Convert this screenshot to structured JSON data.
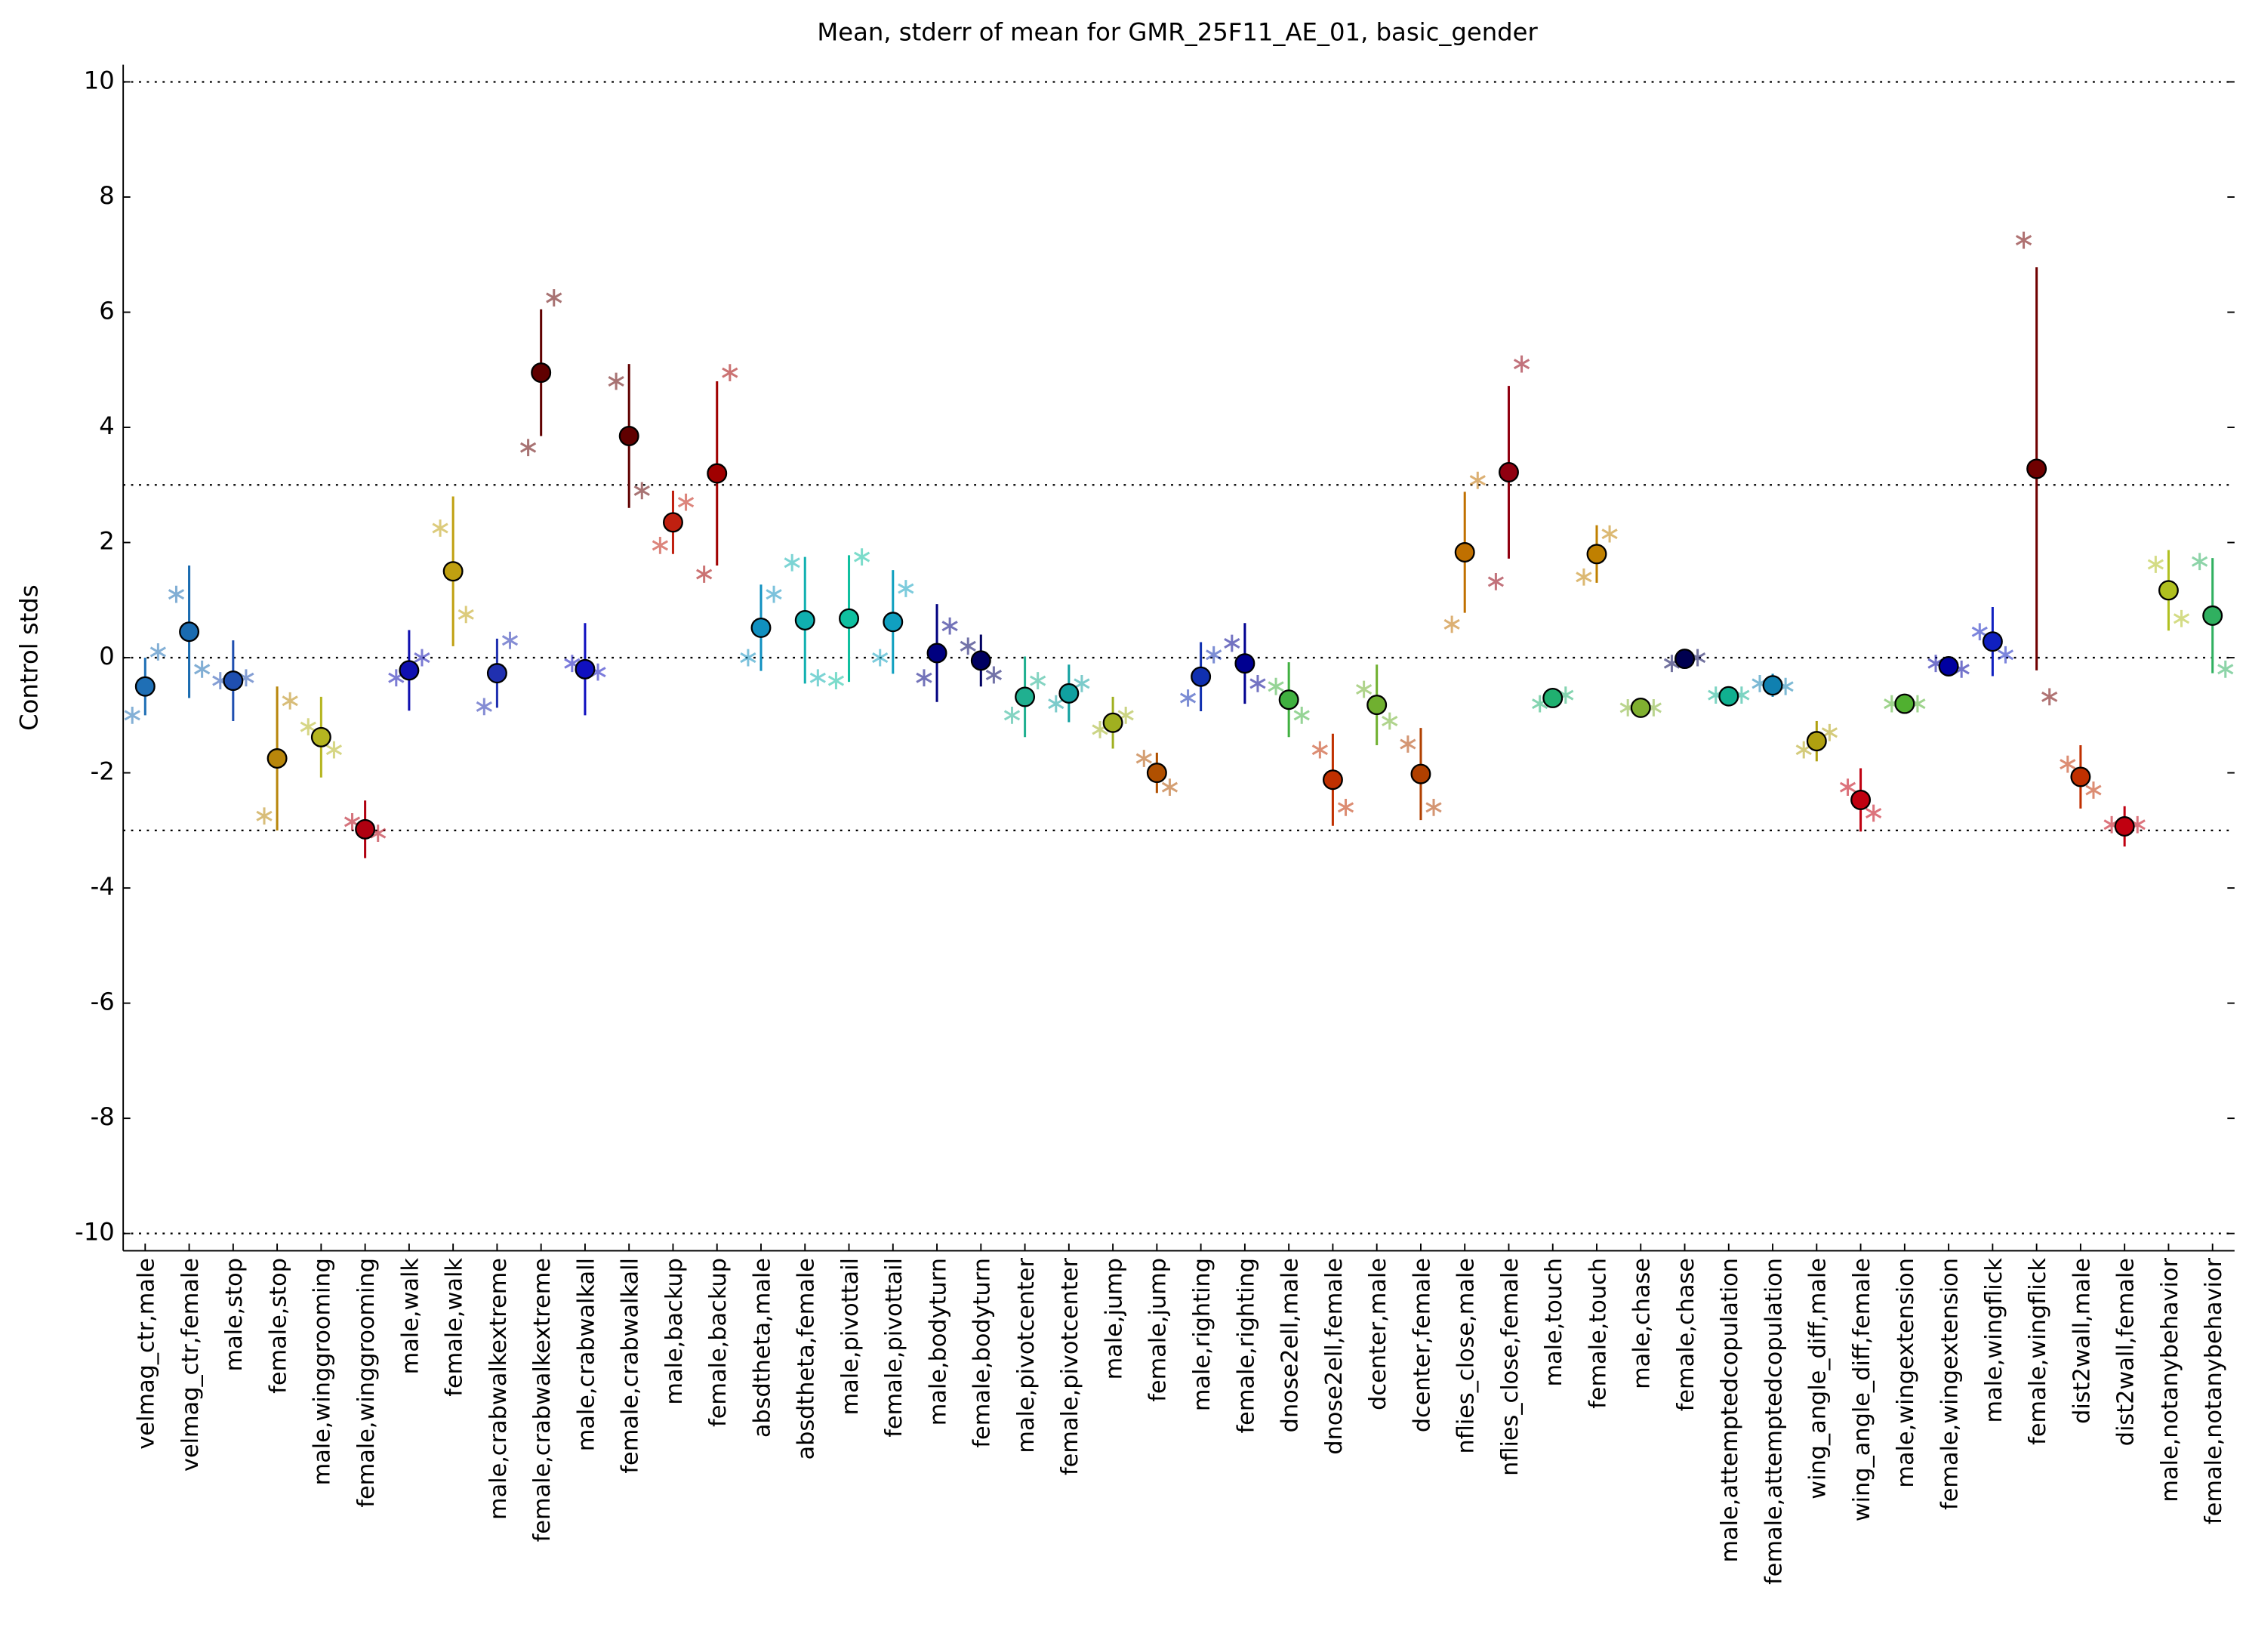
{
  "chart_data": {
    "type": "errorbar",
    "title": "Mean, stderr of mean for GMR_25F11_AE_01, basic_gender",
    "ylabel": "Control stds",
    "categories": [
      "velmag_ctr,male",
      "velmag_ctr,female",
      "male,stop",
      "female,stop",
      "male,winggrooming",
      "female,winggrooming",
      "male,walk",
      "female,walk",
      "male,crabwalkextreme",
      "female,crabwalkextreme",
      "male,crabwalkall",
      "female,crabwalkall",
      "male,backup",
      "female,backup",
      "absdtheta,male",
      "absdtheta,female",
      "male,pivottail",
      "female,pivottail",
      "male,bodyturn",
      "female,bodyturn",
      "male,pivotcenter",
      "female,pivotcenter",
      "male,jump",
      "female,jump",
      "male,righting",
      "female,righting",
      "dnose2ell,male",
      "dnose2ell,female",
      "dcenter,male",
      "dcenter,female",
      "nflies_close,male",
      "nflies_close,female",
      "male,touch",
      "female,touch",
      "male,chase",
      "female,chase",
      "male,attemptedcopulation",
      "female,attemptedcopulation",
      "wing_angle_diff,male",
      "wing_angle_diff,female",
      "male,wingextension",
      "female,wingextension",
      "male,wingflick",
      "female,wingflick",
      "dist2wall,male",
      "dist2wall,female",
      "male,notanybehavior",
      "female,notanybehavior"
    ],
    "values": [
      -0.5,
      0.45,
      -0.4,
      -1.75,
      -1.38,
      -2.98,
      -0.22,
      1.5,
      -0.27,
      4.95,
      -0.2,
      3.85,
      2.35,
      3.2,
      0.52,
      0.65,
      0.68,
      0.62,
      0.08,
      -0.05,
      -0.68,
      -0.62,
      -1.13,
      -2.0,
      -0.33,
      -0.1,
      -0.73,
      -2.12,
      -0.82,
      -2.02,
      1.83,
      3.22,
      -0.7,
      1.8,
      -0.87,
      -0.02,
      -0.67,
      -0.48,
      -1.45,
      -2.47,
      -0.8,
      -0.15,
      0.28,
      3.28,
      -2.07,
      -2.93,
      1.17,
      0.73
    ],
    "errors": [
      0.5,
      1.15,
      0.7,
      1.25,
      0.7,
      0.5,
      0.7,
      1.3,
      0.6,
      1.1,
      0.8,
      1.25,
      0.55,
      1.6,
      0.75,
      1.1,
      1.1,
      0.9,
      0.85,
      0.45,
      0.7,
      0.5,
      0.45,
      0.35,
      0.6,
      0.7,
      0.65,
      0.8,
      0.7,
      0.8,
      1.05,
      1.5,
      0.1,
      0.5,
      0.07,
      0.15,
      0.08,
      0.2,
      0.35,
      0.55,
      0.05,
      0.08,
      0.6,
      3.5,
      0.55,
      0.35,
      0.7,
      1.0
    ],
    "experiment_values": [
      [
        -1.0,
        0.1
      ],
      [
        1.1,
        -0.2
      ],
      [
        -0.4,
        -0.35
      ],
      [
        -2.75,
        -0.75
      ],
      [
        -1.2,
        -1.6
      ],
      [
        -2.85,
        -3.05
      ],
      [
        -0.35,
        0.0
      ],
      [
        2.25,
        0.75
      ],
      [
        -0.85,
        0.3
      ],
      [
        3.65,
        6.25
      ],
      [
        -0.1,
        -0.25
      ],
      [
        4.8,
        2.9
      ],
      [
        1.95,
        2.7
      ],
      [
        1.45,
        4.95
      ],
      [
        0.0,
        1.1
      ],
      [
        1.65,
        -0.35
      ],
      [
        -0.4,
        1.75
      ],
      [
        0.0,
        1.2
      ],
      [
        -0.35,
        0.55
      ],
      [
        0.2,
        -0.3
      ],
      [
        -1.0,
        -0.4
      ],
      [
        -0.8,
        -0.45
      ],
      [
        -1.25,
        -1.0
      ],
      [
        -1.75,
        -2.25
      ],
      [
        -0.7,
        0.05
      ],
      [
        0.25,
        -0.45
      ],
      [
        -0.5,
        -1.0
      ],
      [
        -1.6,
        -2.6
      ],
      [
        -0.55,
        -1.1
      ],
      [
        -1.5,
        -2.6
      ],
      [
        0.58,
        3.08
      ],
      [
        1.32,
        5.1
      ],
      [
        -0.8,
        -0.65
      ],
      [
        1.4,
        2.15
      ],
      [
        -0.87,
        -0.87
      ],
      [
        -0.1,
        0.0
      ],
      [
        -0.65,
        -0.65
      ],
      [
        -0.45,
        -0.5
      ],
      [
        -1.6,
        -1.3
      ],
      [
        -2.25,
        -2.7
      ],
      [
        -0.8,
        -0.8
      ],
      [
        -0.1,
        -0.2
      ],
      [
        0.45,
        0.05
      ],
      [
        7.25,
        -0.68
      ],
      [
        -1.85,
        -2.3
      ],
      [
        -2.9,
        -2.9
      ],
      [
        1.62,
        0.68
      ],
      [
        1.67,
        -0.2
      ]
    ],
    "colors": [
      "#1f6fb5",
      "#1a6bb0",
      "#1f4fb0",
      "#b8860b",
      "#b5b520",
      "#b00010",
      "#1010b0",
      "#c0a010",
      "#2030b0",
      "#600000",
      "#1010c0",
      "#600000",
      "#c02010",
      "#a00000",
      "#1090c0",
      "#10b0b0",
      "#10c0a0",
      "#10a0c0",
      "#000080",
      "#000060",
      "#20b090",
      "#10a0a0",
      "#a0b020",
      "#b05000",
      "#1030b0",
      "#000090",
      "#40b040",
      "#c03000",
      "#70b030",
      "#b04000",
      "#c07000",
      "#900010",
      "#20b070",
      "#c08000",
      "#80b030",
      "#000050",
      "#10b090",
      "#1080b0",
      "#b0a010",
      "#c00010",
      "#50b030",
      "#0000a0",
      "#1020c0",
      "#700000",
      "#c03000",
      "#c00010",
      "#b0c020",
      "#30b060"
    ],
    "ylim": [
      -10.3,
      10.3
    ],
    "yticks": [
      -10,
      -8,
      -6,
      -4,
      -2,
      0,
      2,
      4,
      6,
      8,
      10
    ],
    "hlines": [
      -10,
      -3,
      0,
      3,
      10
    ]
  }
}
